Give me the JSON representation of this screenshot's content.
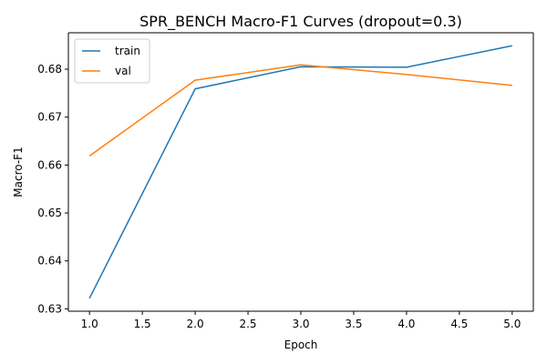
{
  "chart_data": {
    "type": "line",
    "title": "SPR_BENCH Macro-F1 Curves (dropout=0.3)",
    "xlabel": "Epoch",
    "ylabel": "Macro-F1",
    "x": [
      1,
      2,
      3,
      4,
      5
    ],
    "xlim": [
      0.8,
      5.2
    ],
    "ylim": [
      0.6295,
      0.6876
    ],
    "xticks": [
      "1.0",
      "1.5",
      "2.0",
      "2.5",
      "3.0",
      "3.5",
      "4.0",
      "4.5",
      "5.0"
    ],
    "yticks": [
      "0.63",
      "0.64",
      "0.65",
      "0.66",
      "0.67",
      "0.68"
    ],
    "grid": false,
    "legend_position": "top-left",
    "series": [
      {
        "name": "train",
        "color": "#1f77b4",
        "values": [
          0.6322,
          0.6759,
          0.6805,
          0.6804,
          0.6849
        ]
      },
      {
        "name": "val",
        "color": "#ff7f0e",
        "values": [
          0.6619,
          0.6777,
          0.6809,
          0.6789,
          0.6766
        ]
      }
    ]
  }
}
